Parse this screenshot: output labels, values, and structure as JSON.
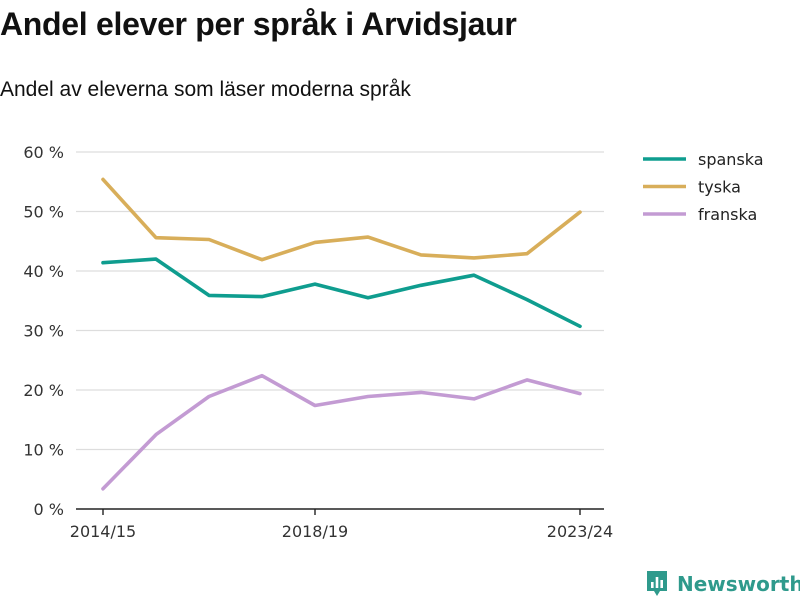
{
  "title": "Andel elever per språk i Arvidsjaur",
  "subtitle": "Andel av eleverna som läser moderna språk",
  "brand": {
    "name": "Newsworthy",
    "icon": "newsworthy-logo-icon",
    "color": "#2f9a8c"
  },
  "chart_data": {
    "type": "line",
    "title": "Andel elever per språk i Arvidsjaur",
    "subtitle": "Andel av eleverna som läser moderna språk",
    "xlabel": "",
    "ylabel": "",
    "x": [
      "2014/15",
      "2015/16",
      "2016/17",
      "2017/18",
      "2018/19",
      "2019/20",
      "2020/21",
      "2021/22",
      "2022/23",
      "2023/24"
    ],
    "x_tick_labels": [
      "2014/15",
      "2018/19",
      "2023/24"
    ],
    "y_ticks": [
      0,
      10,
      20,
      30,
      40,
      50,
      60
    ],
    "y_tick_labels": [
      "0 %",
      "10 %",
      "20 %",
      "30 %",
      "40 %",
      "50 %",
      "60 %"
    ],
    "ylim": [
      0,
      60
    ],
    "grid": true,
    "legend_position": "right",
    "series": [
      {
        "name": "spanska",
        "color": "#0f9d8f",
        "values": [
          41.4,
          42.0,
          35.9,
          35.7,
          37.8,
          35.5,
          37.6,
          39.3,
          35.2,
          30.7
        ]
      },
      {
        "name": "tyska",
        "color": "#d8ae5a",
        "values": [
          55.4,
          45.6,
          45.3,
          41.9,
          44.8,
          45.7,
          42.7,
          42.2,
          42.9,
          49.9
        ]
      },
      {
        "name": "franska",
        "color": "#c39bd3",
        "values": [
          3.4,
          12.5,
          18.9,
          22.4,
          17.4,
          18.9,
          19.6,
          18.5,
          21.7,
          19.4
        ]
      }
    ]
  }
}
